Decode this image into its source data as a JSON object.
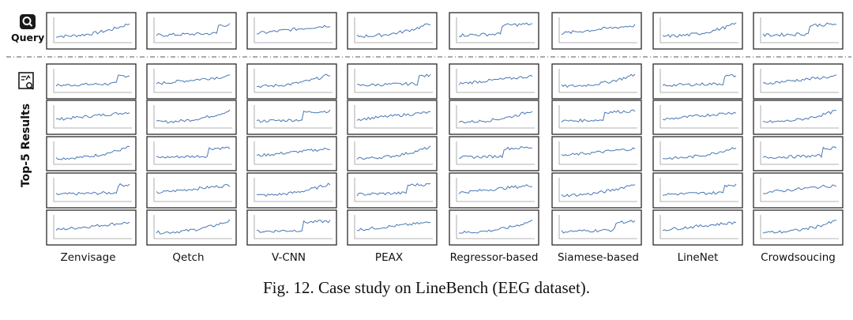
{
  "figure": {
    "query_label": "Query",
    "results_label": "Top-5 Results",
    "caption": "Fig. 12.  Case study on LineBench (EEG dataset).",
    "methods": [
      "Zenvisage",
      "Qetch",
      "V-CNN",
      "PEAX",
      "Regressor-based",
      "Siamese-based",
      "LineNet",
      "Crowdsoucing"
    ],
    "line_color": "#4a78b5",
    "query_icon": "magnifier-icon",
    "results_icon": "chart-search-icon"
  }
}
